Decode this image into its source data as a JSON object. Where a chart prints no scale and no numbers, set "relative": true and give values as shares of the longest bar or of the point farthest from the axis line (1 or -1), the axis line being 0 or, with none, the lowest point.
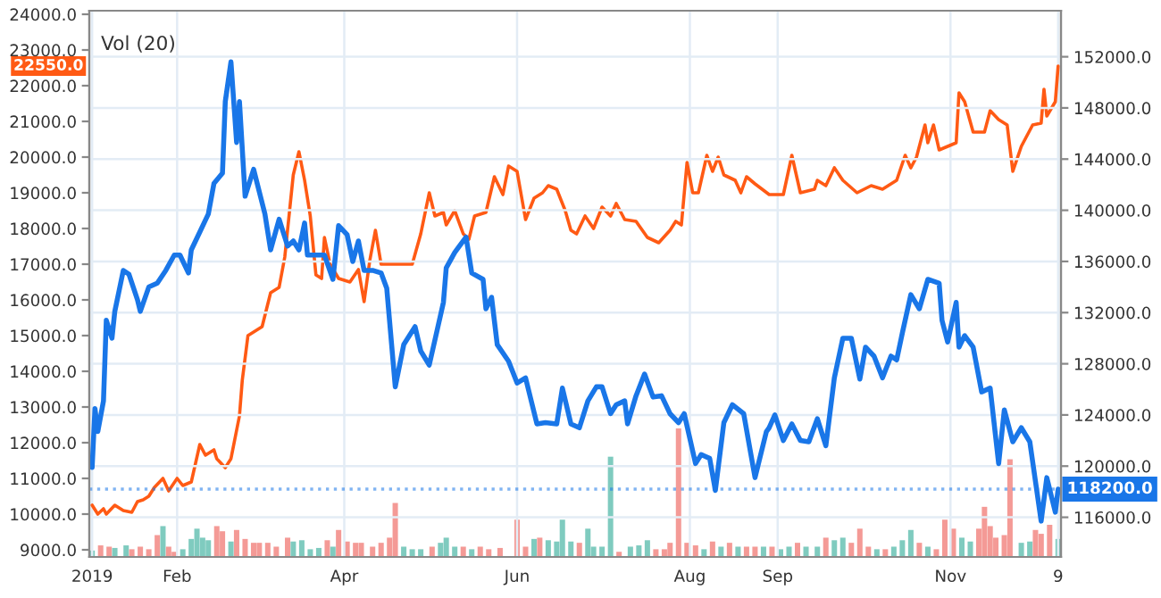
{
  "chart_data": [
    {
      "type": "line",
      "annotations": [
        "Vol (20)",
        "22550.0"
      ],
      "xlim": [
        "2019-01-01",
        "2019-12-10"
      ],
      "xticks": [
        {
          "value": "2019-01-02",
          "label": "2019"
        },
        {
          "value": "2019-02-01",
          "label": "Feb"
        },
        {
          "value": "2019-04-01",
          "label": "Apr"
        },
        {
          "value": "2019-06-01",
          "label": "Jun"
        },
        {
          "value": "2019-08-01",
          "label": "Aug"
        },
        {
          "value": "2019-09-01",
          "label": "Sep"
        },
        {
          "value": "2019-11-01",
          "label": "Nov"
        },
        {
          "value": "2019-12-09",
          "label": "9"
        }
      ],
      "ylim": [
        8800,
        24100
      ],
      "yticks": [
        {
          "value": 9000,
          "label": "9000.0"
        },
        {
          "value": 10000,
          "label": "10000.0"
        },
        {
          "value": 11000,
          "label": "11000.0"
        },
        {
          "value": 12000,
          "label": "12000.0"
        },
        {
          "value": 13000,
          "label": "13000.0"
        },
        {
          "value": 14000,
          "label": "14000.0"
        },
        {
          "value": 15000,
          "label": "15000.0"
        },
        {
          "value": 16000,
          "label": "16000.0"
        },
        {
          "value": 17000,
          "label": "17000.0"
        },
        {
          "value": 18000,
          "label": "18000.0"
        },
        {
          "value": 19000,
          "label": "19000.0"
        },
        {
          "value": 20000,
          "label": "20000.0"
        },
        {
          "value": 21000,
          "label": "21000.0"
        },
        {
          "value": 22000,
          "label": "22000.0"
        },
        {
          "value": 23000,
          "label": "23000.0"
        },
        {
          "value": 24000,
          "label": "24000.0"
        }
      ],
      "y2lim": [
        112900,
        155600
      ],
      "y2ticks": [
        {
          "value": 116000,
          "label": "116000.0"
        },
        {
          "value": 120000,
          "label": "120000.0"
        },
        {
          "value": 124000,
          "label": "124000.0"
        },
        {
          "value": 128000,
          "label": "128000.0"
        },
        {
          "value": 132000,
          "label": "132000.0"
        },
        {
          "value": 136000,
          "label": "136000.0"
        },
        {
          "value": 140000,
          "label": "140000.0"
        },
        {
          "value": 144000,
          "label": "144000.0"
        },
        {
          "value": 148000,
          "label": "148000.0"
        },
        {
          "value": 152000,
          "label": "152000.0"
        }
      ],
      "grid": true,
      "ref_lines": [
        {
          "axis": "y2",
          "value": 118200,
          "label": "118200.0",
          "color": "#1976e8",
          "line_style": "dotted"
        }
      ],
      "series": [
        {
          "color": "#1976e8",
          "axis": "y2",
          "x": [
            "2019-01-02",
            "2019-01-03",
            "2019-01-04",
            "2019-01-06",
            "2019-01-07",
            "2019-01-09",
            "2019-01-10",
            "2019-01-13",
            "2019-01-15",
            "2019-01-18",
            "2019-01-19",
            "2019-01-22",
            "2019-01-25",
            "2019-01-28",
            "2019-01-31",
            "2019-02-02",
            "2019-02-05",
            "2019-02-06",
            "2019-02-09",
            "2019-02-12",
            "2019-02-14",
            "2019-02-17",
            "2019-02-18",
            "2019-02-20",
            "2019-02-22",
            "2019-02-23",
            "2019-02-25",
            "2019-02-28",
            "2019-03-04",
            "2019-03-06",
            "2019-03-09",
            "2019-03-12",
            "2019-03-14",
            "2019-03-16",
            "2019-03-18",
            "2019-03-19",
            "2019-03-21",
            "2019-03-25",
            "2019-03-28",
            "2019-03-30",
            "2019-04-02",
            "2019-04-04",
            "2019-04-06",
            "2019-04-08",
            "2019-04-11",
            "2019-04-14",
            "2019-04-16",
            "2019-04-19",
            "2019-04-22",
            "2019-04-26",
            "2019-04-28",
            "2019-05-01",
            "2019-05-06",
            "2019-05-07",
            "2019-05-10",
            "2019-05-14",
            "2019-05-16",
            "2019-05-20",
            "2019-05-21",
            "2019-05-23",
            "2019-05-25",
            "2019-05-29",
            "2019-06-01",
            "2019-06-04",
            "2019-06-08",
            "2019-06-11",
            "2019-06-15",
            "2019-06-17",
            "2019-06-20",
            "2019-06-23",
            "2019-06-26",
            "2019-06-29",
            "2019-07-01",
            "2019-07-04",
            "2019-07-06",
            "2019-07-09",
            "2019-07-10",
            "2019-07-13",
            "2019-07-16",
            "2019-07-19",
            "2019-07-22",
            "2019-07-25",
            "2019-07-28",
            "2019-07-30",
            "2019-08-03",
            "2019-08-05",
            "2019-08-08",
            "2019-08-10",
            "2019-08-13",
            "2019-08-16",
            "2019-08-20",
            "2019-08-24",
            "2019-08-28",
            "2019-08-29",
            "2019-08-31",
            "2019-09-03",
            "2019-09-06",
            "2019-09-09",
            "2019-09-12",
            "2019-09-15",
            "2019-09-18",
            "2019-09-21",
            "2019-09-24",
            "2019-09-27",
            "2019-09-30",
            "2019-10-02",
            "2019-10-05",
            "2019-10-08",
            "2019-10-11",
            "2019-10-13",
            "2019-10-15",
            "2019-10-18",
            "2019-10-21",
            "2019-10-24",
            "2019-10-28",
            "2019-10-29",
            "2019-10-31",
            "2019-11-03",
            "2019-11-04",
            "2019-11-06",
            "2019-11-09",
            "2019-11-12",
            "2019-11-15",
            "2019-11-18",
            "2019-11-20",
            "2019-11-23",
            "2019-11-26",
            "2019-11-29",
            "2019-12-03",
            "2019-12-05",
            "2019-12-08",
            "2019-12-09"
          ],
          "values": [
            119900,
            124500,
            122700,
            125100,
            131400,
            130000,
            132100,
            135300,
            135000,
            133000,
            132100,
            134000,
            134300,
            135300,
            136500,
            136500,
            135100,
            136900,
            138300,
            139700,
            142100,
            142900,
            148500,
            151600,
            145300,
            148500,
            141100,
            143200,
            139700,
            136900,
            139300,
            137200,
            137600,
            136900,
            139000,
            136500,
            136500,
            136500,
            134600,
            138800,
            138100,
            136000,
            137600,
            135300,
            135300,
            135100,
            133900,
            126200,
            129500,
            130900,
            129000,
            127900,
            132800,
            135500,
            136700,
            137900,
            135100,
            134600,
            132300,
            133200,
            129500,
            128200,
            126500,
            126900,
            123300,
            123400,
            123300,
            126100,
            123300,
            123000,
            125100,
            126200,
            126200,
            124100,
            124800,
            125100,
            123300,
            125500,
            127200,
            125400,
            125500,
            124100,
            123400,
            124100,
            120200,
            120900,
            120600,
            118100,
            123400,
            124800,
            124100,
            119100,
            122700,
            123000,
            124000,
            122000,
            123300,
            122000,
            121900,
            123700,
            121600,
            126900,
            130000,
            130000,
            126800,
            129300,
            128600,
            126900,
            128600,
            128300,
            130400,
            133400,
            132300,
            134600,
            134300,
            131400,
            129700,
            132800,
            129300,
            130200,
            129300,
            125800,
            126100,
            120200,
            124400,
            121900,
            123000,
            121900,
            115700,
            119100,
            116400,
            118200
          ]
        },
        {
          "color": "#ff5a14",
          "x": [
            "2019-01-02",
            "2019-01-04",
            "2019-01-06",
            "2019-01-07",
            "2019-01-10",
            "2019-01-13",
            "2019-01-16",
            "2019-01-18",
            "2019-01-20",
            "2019-01-22",
            "2019-01-24",
            "2019-01-27",
            "2019-01-29",
            "2019-02-01",
            "2019-02-03",
            "2019-02-06",
            "2019-02-09",
            "2019-02-11",
            "2019-02-14",
            "2019-02-15",
            "2019-02-18",
            "2019-02-20",
            "2019-02-23",
            "2019-02-24",
            "2019-02-26",
            "2019-03-03",
            "2019-03-06",
            "2019-03-09",
            "2019-03-11",
            "2019-03-14",
            "2019-03-16",
            "2019-03-18",
            "2019-03-20",
            "2019-03-22",
            "2019-03-24",
            "2019-03-25",
            "2019-03-27",
            "2019-03-30",
            "2019-04-03",
            "2019-04-06",
            "2019-04-08",
            "2019-04-10",
            "2019-04-12",
            "2019-04-14",
            "2019-04-25",
            "2019-04-28",
            "2019-05-01",
            "2019-05-03",
            "2019-05-06",
            "2019-05-07",
            "2019-05-10",
            "2019-05-13",
            "2019-05-15",
            "2019-05-17",
            "2019-05-21",
            "2019-05-24",
            "2019-05-27",
            "2019-05-29",
            "2019-06-01",
            "2019-06-04",
            "2019-06-07",
            "2019-06-10",
            "2019-06-12",
            "2019-06-15",
            "2019-06-18",
            "2019-06-20",
            "2019-06-22",
            "2019-06-25",
            "2019-06-28",
            "2019-07-01",
            "2019-07-04",
            "2019-07-06",
            "2019-07-09",
            "2019-07-13",
            "2019-07-17",
            "2019-07-21",
            "2019-07-25",
            "2019-07-27",
            "2019-07-29",
            "2019-07-31",
            "2019-08-02",
            "2019-08-04",
            "2019-08-07",
            "2019-08-09",
            "2019-08-11",
            "2019-08-13",
            "2019-08-17",
            "2019-08-19",
            "2019-08-21",
            "2019-08-24",
            "2019-08-29",
            "2019-09-03",
            "2019-09-06",
            "2019-09-07",
            "2019-09-09",
            "2019-09-14",
            "2019-09-15",
            "2019-09-18",
            "2019-09-21",
            "2019-09-24",
            "2019-09-29",
            "2019-10-04",
            "2019-10-08",
            "2019-10-13",
            "2019-10-16",
            "2019-10-18",
            "2019-10-20",
            "2019-10-23",
            "2019-10-24",
            "2019-10-26",
            "2019-10-28",
            "2019-11-03",
            "2019-11-04",
            "2019-11-06",
            "2019-11-09",
            "2019-11-13",
            "2019-11-15",
            "2019-11-18",
            "2019-11-21",
            "2019-11-23",
            "2019-11-26",
            "2019-11-30",
            "2019-12-03",
            "2019-12-04",
            "2019-12-05",
            "2019-12-08",
            "2019-12-09"
          ],
          "values": [
            10250,
            10000,
            10150,
            10000,
            10250,
            10100,
            10050,
            10350,
            10400,
            10500,
            10750,
            11000,
            10650,
            11000,
            10800,
            10900,
            11950,
            11650,
            11800,
            11550,
            11300,
            11550,
            12750,
            13750,
            15000,
            15250,
            16200,
            16350,
            17200,
            19500,
            20150,
            19350,
            18350,
            16700,
            16600,
            17750,
            17000,
            16600,
            16500,
            16850,
            15950,
            17100,
            17950,
            17000,
            17000,
            17850,
            19000,
            18350,
            18450,
            18100,
            18500,
            17850,
            17700,
            18350,
            18450,
            19450,
            18950,
            19750,
            19600,
            18250,
            18850,
            19000,
            19200,
            19100,
            18500,
            17950,
            17850,
            18350,
            18000,
            18600,
            18350,
            18700,
            18250,
            18200,
            17750,
            17600,
            17950,
            18200,
            18100,
            19850,
            19000,
            19000,
            20050,
            19600,
            20000,
            19500,
            19350,
            19000,
            19450,
            19250,
            18950,
            18950,
            20050,
            19700,
            19000,
            19100,
            19350,
            19200,
            19700,
            19350,
            19000,
            19200,
            19100,
            19350,
            20050,
            19700,
            20000,
            20900,
            20400,
            20900,
            20200,
            20400,
            21800,
            21550,
            20700,
            20700,
            21300,
            21050,
            20900,
            19600,
            20300,
            20900,
            20950,
            21900,
            21150,
            21550,
            22550
          ]
        }
      ]
    },
    {
      "type": "bar",
      "relative": true,
      "tick_labels": false,
      "xlim": [
        "2019-01-01",
        "2019-12-10"
      ],
      "x": [
        "2019-01-02",
        "2019-01-05",
        "2019-01-08",
        "2019-01-10",
        "2019-01-14",
        "2019-01-16",
        "2019-01-19",
        "2019-01-22",
        "2019-01-25",
        "2019-01-27",
        "2019-01-29",
        "2019-01-31",
        "2019-02-03",
        "2019-02-06",
        "2019-02-08",
        "2019-02-10",
        "2019-02-12",
        "2019-02-15",
        "2019-02-17",
        "2019-02-20",
        "2019-02-22",
        "2019-02-25",
        "2019-02-28",
        "2019-03-02",
        "2019-03-05",
        "2019-03-08",
        "2019-03-12",
        "2019-03-14",
        "2019-03-17",
        "2019-03-20",
        "2019-03-23",
        "2019-03-26",
        "2019-03-28",
        "2019-03-30",
        "2019-04-02",
        "2019-04-05",
        "2019-04-07",
        "2019-04-11",
        "2019-04-14",
        "2019-04-17",
        "2019-04-19",
        "2019-04-22",
        "2019-04-25",
        "2019-04-28",
        "2019-05-02",
        "2019-05-05",
        "2019-05-07",
        "2019-05-10",
        "2019-05-13",
        "2019-05-16",
        "2019-05-19",
        "2019-05-22",
        "2019-05-26",
        "2019-06-01",
        "2019-06-04",
        "2019-06-07",
        "2019-06-09",
        "2019-06-12",
        "2019-06-15",
        "2019-06-17",
        "2019-06-20",
        "2019-06-23",
        "2019-06-26",
        "2019-06-28",
        "2019-07-01",
        "2019-07-04",
        "2019-07-07",
        "2019-07-11",
        "2019-07-14",
        "2019-07-17",
        "2019-07-20",
        "2019-07-23",
        "2019-07-25",
        "2019-07-28",
        "2019-07-31",
        "2019-08-03",
        "2019-08-06",
        "2019-08-09",
        "2019-08-12",
        "2019-08-15",
        "2019-08-18",
        "2019-08-21",
        "2019-08-24",
        "2019-08-27",
        "2019-08-30",
        "2019-09-02",
        "2019-09-05",
        "2019-09-08",
        "2019-09-11",
        "2019-09-15",
        "2019-09-18",
        "2019-09-21",
        "2019-09-24",
        "2019-09-27",
        "2019-09-30",
        "2019-10-03",
        "2019-10-06",
        "2019-10-09",
        "2019-10-12",
        "2019-10-15",
        "2019-10-18",
        "2019-10-21",
        "2019-10-24",
        "2019-10-27",
        "2019-10-30",
        "2019-11-02",
        "2019-11-05",
        "2019-11-08",
        "2019-11-11",
        "2019-11-13",
        "2019-11-15",
        "2019-11-17",
        "2019-11-20",
        "2019-11-22",
        "2019-11-26",
        "2019-11-29",
        "2019-12-01",
        "2019-12-03",
        "2019-12-06",
        "2019-12-09"
      ],
      "values": [
        0.05,
        0.09,
        0.08,
        0.07,
        0.09,
        0.06,
        0.08,
        0.06,
        0.17,
        0.24,
        0.08,
        0.04,
        0.06,
        0.14,
        0.22,
        0.15,
        0.13,
        0.24,
        0.2,
        0.12,
        0.21,
        0.14,
        0.11,
        0.11,
        0.11,
        0.08,
        0.15,
        0.12,
        0.13,
        0.06,
        0.07,
        0.13,
        0.08,
        0.21,
        0.12,
        0.11,
        0.11,
        0.08,
        0.11,
        0.15,
        0.42,
        0.08,
        0.06,
        0.06,
        0.08,
        0.11,
        0.15,
        0.08,
        0.08,
        0.06,
        0.08,
        0.06,
        0.07,
        0.29,
        0.08,
        0.14,
        0.15,
        0.13,
        0.12,
        0.29,
        0.12,
        0.11,
        0.22,
        0.08,
        0.08,
        0.78,
        0.04,
        0.08,
        0.09,
        0.13,
        0.06,
        0.06,
        0.11,
        1,
        0.11,
        0.09,
        0.06,
        0.12,
        0.08,
        0.11,
        0.08,
        0.08,
        0.08,
        0.08,
        0.08,
        0.06,
        0.08,
        0.11,
        0.08,
        0.08,
        0.15,
        0.13,
        0.15,
        0.11,
        0.22,
        0.08,
        0.06,
        0.06,
        0.08,
        0.13,
        0.21,
        0.11,
        0.08,
        0.06,
        0.29,
        0.22,
        0.15,
        0.12,
        0.22,
        0.39,
        0.24,
        0.15,
        0.17,
        0.76,
        0.11,
        0.12,
        0.21,
        0.18,
        0.25,
        0.14
      ],
      "colors": [
        "#7fcbbf",
        "#f49a96",
        "#f49a96",
        "#7fcbbf",
        "#7fcbbf",
        "#f49a96",
        "#f49a96",
        "#f49a96",
        "#f49a96",
        "#7fcbbf",
        "#f49a96",
        "#f49a96",
        "#7fcbbf",
        "#7fcbbf",
        "#7fcbbf",
        "#7fcbbf",
        "#7fcbbf",
        "#f49a96",
        "#f49a96",
        "#7fcbbf",
        "#f49a96",
        "#f49a96",
        "#f49a96",
        "#f49a96",
        "#f49a96",
        "#f49a96",
        "#f49a96",
        "#7fcbbf",
        "#7fcbbf",
        "#7fcbbf",
        "#7fcbbf",
        "#f49a96",
        "#7fcbbf",
        "#f49a96",
        "#f49a96",
        "#f49a96",
        "#f49a96",
        "#f49a96",
        "#f49a96",
        "#f49a96",
        "#f49a96",
        "#7fcbbf",
        "#7fcbbf",
        "#7fcbbf",
        "#f49a96",
        "#7fcbbf",
        "#7fcbbf",
        "#7fcbbf",
        "#f49a96",
        "#7fcbbf",
        "#f49a96",
        "#f49a96",
        "#f49a96",
        "#f49a96",
        "#f49a96",
        "#7fcbbf",
        "#f49a96",
        "#7fcbbf",
        "#7fcbbf",
        "#7fcbbf",
        "#7fcbbf",
        "#f49a96",
        "#7fcbbf",
        "#7fcbbf",
        "#7fcbbf",
        "#7fcbbf",
        "#f49a96",
        "#7fcbbf",
        "#7fcbbf",
        "#7fcbbf",
        "#f49a96",
        "#f49a96",
        "#f49a96",
        "#f49a96",
        "#f49a96",
        "#f49a96",
        "#7fcbbf",
        "#f49a96",
        "#7fcbbf",
        "#f49a96",
        "#7fcbbf",
        "#f49a96",
        "#f49a96",
        "#7fcbbf",
        "#f49a96",
        "#7fcbbf",
        "#7fcbbf",
        "#f49a96",
        "#7fcbbf",
        "#7fcbbf",
        "#f49a96",
        "#7fcbbf",
        "#7fcbbf",
        "#f49a96",
        "#f49a96",
        "#f49a96",
        "#7fcbbf",
        "#f49a96",
        "#7fcbbf",
        "#7fcbbf",
        "#7fcbbf",
        "#f49a96",
        "#7fcbbf",
        "#f49a96",
        "#f49a96",
        "#f49a96",
        "#7fcbbf",
        "#7fcbbf",
        "#f49a96",
        "#f49a96",
        "#f49a96",
        "#f49a96",
        "#f49a96",
        "#f49a96",
        "#7fcbbf",
        "#7fcbbf",
        "#f49a96",
        "#f49a96",
        "#f49a96",
        "#7fcbbf"
      ]
    }
  ]
}
